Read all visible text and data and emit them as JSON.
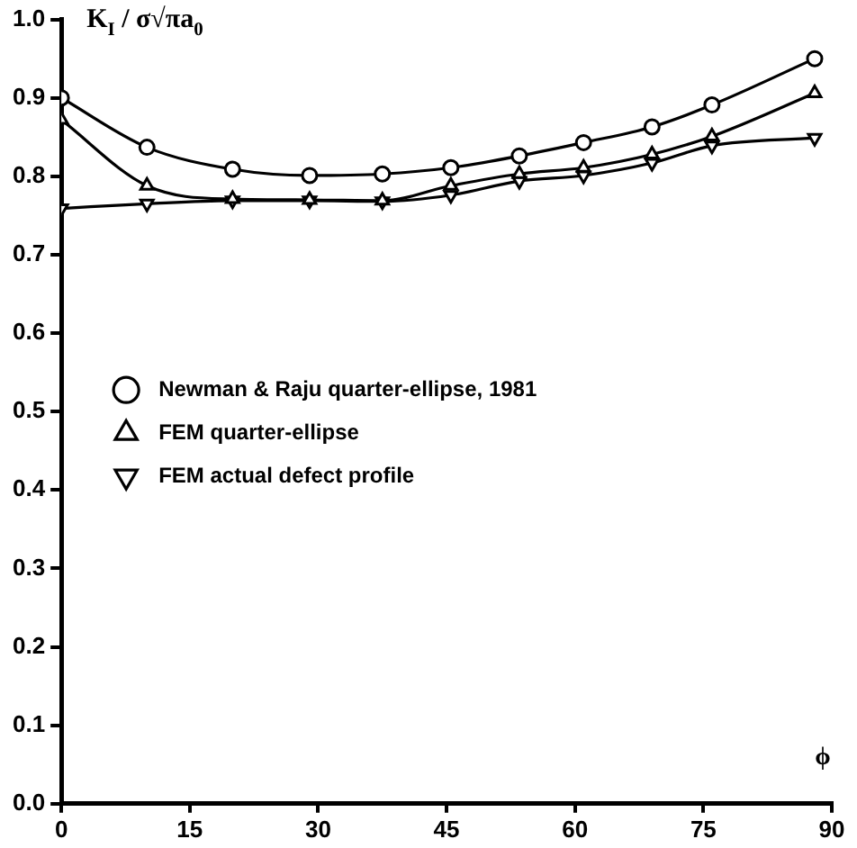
{
  "chart_data": {
    "type": "line",
    "xlabel": "ϕ",
    "ylabel": "K$_{I}$ / σ√πa$_{0}$",
    "xlim": [
      0,
      90
    ],
    "xticks": [
      0,
      15,
      30,
      45,
      60,
      75,
      90
    ],
    "ylim": [
      0,
      1
    ],
    "yticks": [
      {
        "value": 0,
        "label": "0.0"
      },
      0.1,
      0.2,
      0.3,
      0.4,
      0.5,
      0.6,
      0.7,
      0.8,
      0.9,
      {
        "value": 1,
        "label": "1.0"
      }
    ],
    "grid": false,
    "legend": "center left",
    "line_style": "solid",
    "series": [
      {
        "name": "Newman & Raju quarter-ellipse, 1981",
        "color": "#000000",
        "marker": "circle",
        "x": [
          0,
          10,
          20,
          29,
          37.5,
          45.5,
          53.5,
          61,
          69,
          76,
          88
        ],
        "values": [
          0.9,
          0.837,
          0.809,
          0.801,
          0.803,
          0.811,
          0.826,
          0.843,
          0.863,
          0.891,
          0.95
        ]
      },
      {
        "name": "FEM quarter-ellipse",
        "color": "#000000",
        "marker": "triangle",
        "x": [
          0,
          10,
          20,
          29,
          37.5,
          45.5,
          53.5,
          61,
          69,
          76,
          88
        ],
        "values": [
          0.872,
          0.788,
          0.771,
          0.77,
          0.769,
          0.788,
          0.803,
          0.811,
          0.828,
          0.851,
          0.906
        ]
      },
      {
        "name": "FEM actual defect profile",
        "color": "#000000",
        "marker": "triangle-down",
        "x": [
          0,
          10,
          20,
          29,
          37.5,
          45.5,
          53.5,
          61,
          69,
          76,
          88
        ],
        "values": [
          0.759,
          0.765,
          0.769,
          0.769,
          0.768,
          0.776,
          0.794,
          0.801,
          0.817,
          0.839,
          0.849
        ]
      }
    ]
  }
}
